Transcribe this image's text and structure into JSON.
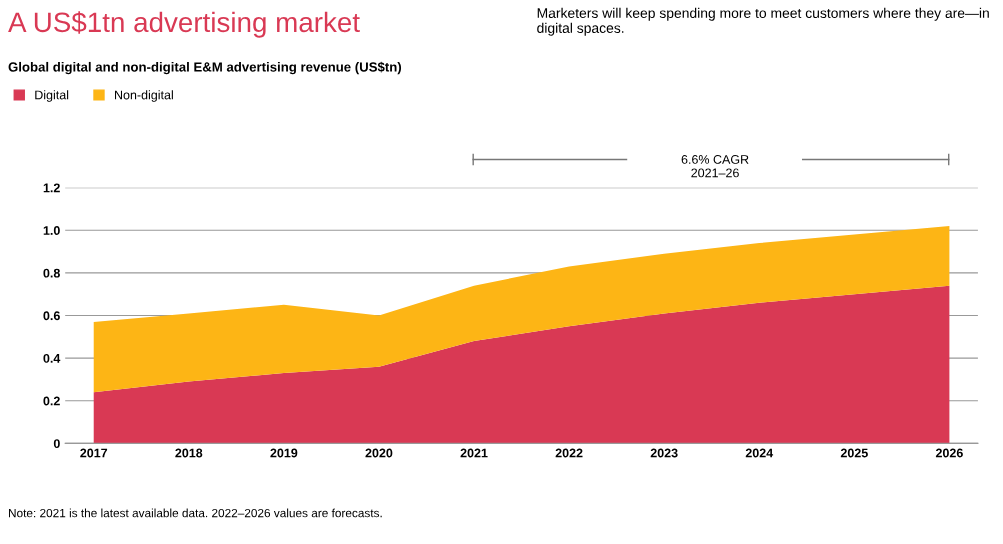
{
  "chart_data": {
    "type": "area",
    "stacked": true,
    "title": "A US$1tn advertising market",
    "subtitle": "Marketers will keep spending more to meet customers where they are—in digital spaces.",
    "categories": [
      "2017",
      "2018",
      "2019",
      "2020",
      "2021",
      "2022",
      "2023",
      "2024",
      "2025",
      "2026"
    ],
    "series": [
      {
        "name": "Digital",
        "color": "#d93954",
        "values": [
          0.24,
          0.29,
          0.33,
          0.36,
          0.48,
          0.55,
          0.61,
          0.66,
          0.7,
          0.74
        ]
      },
      {
        "name": "Non-digital",
        "color": "#fdb515",
        "values": [
          0.33,
          0.32,
          0.32,
          0.24,
          0.26,
          0.28,
          0.28,
          0.28,
          0.28,
          0.28
        ]
      }
    ],
    "ylim": [
      0,
      1.2
    ],
    "yticks": [
      0,
      0.2,
      0.4,
      0.6,
      0.8,
      {
        "value": 1,
        "label": "1.0"
      },
      1.2
    ],
    "grid": "y",
    "legend": "top left",
    "annotations": [
      "Global digital and non-digital E&M advertising revenue (US$tn)",
      "6.6% CAGR\n2021–26",
      "Note: 2021 is the latest available data. 2022–2026 values are forecasts."
    ]
  }
}
